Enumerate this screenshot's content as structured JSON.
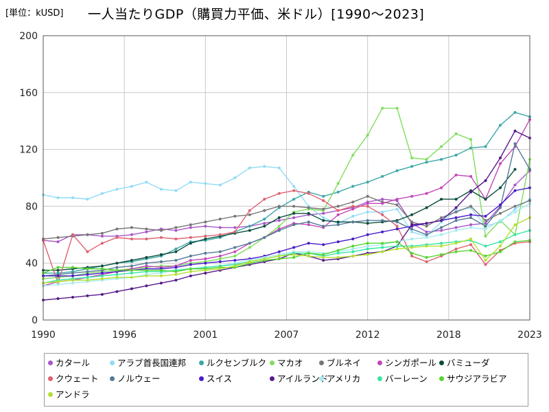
{
  "chart_data": {
    "type": "line",
    "unit_label": "[単位：kUSD]",
    "title": "一人当たりGDP（購買力平価、米ドル）[1990～2023]",
    "xlabel": "",
    "ylabel": "",
    "xlim": [
      1990,
      2023
    ],
    "ylim": [
      0,
      200
    ],
    "x_ticks": [
      "1990",
      "1996",
      "2001",
      "2007",
      "2012",
      "2018",
      "2023"
    ],
    "x_tick_values": [
      1990,
      1995.5,
      2001,
      2006.5,
      2012,
      2017.5,
      2023
    ],
    "y_ticks": [
      "0",
      "40",
      "80",
      "120",
      "160",
      "200"
    ],
    "y_tick_values": [
      0,
      40,
      80,
      120,
      160,
      200
    ],
    "grid": true,
    "legend_position": "bottom",
    "x": [
      1990,
      1991,
      1992,
      1993,
      1994,
      1995,
      1996,
      1997,
      1998,
      1999,
      2000,
      2001,
      2002,
      2003,
      2004,
      2005,
      2006,
      2007,
      2008,
      2009,
      2010,
      2011,
      2012,
      2013,
      2014,
      2015,
      2016,
      2017,
      2018,
      2019,
      2020,
      2021,
      2022,
      2023
    ],
    "series": [
      {
        "name": "カタール",
        "color": "#a855c8",
        "values": [
          56,
          55,
          60,
          60,
          59,
          59,
          60,
          62,
          64,
          63,
          65,
          66,
          65,
          65,
          66,
          68,
          70,
          72,
          74,
          75,
          77,
          79,
          83,
          85,
          84,
          68,
          62,
          63,
          65,
          67,
          68,
          80,
          95,
          105
        ]
      },
      {
        "name": "アラブ首長国連邦",
        "color": "#8fdcf5",
        "values": [
          88,
          86,
          86,
          85,
          89,
          92,
          94,
          97,
          92,
          91,
          97,
          96,
          95,
          100,
          107,
          108,
          107,
          94,
          80,
          72,
          68,
          73,
          76,
          76,
          78,
          62,
          59,
          69,
          77,
          79,
          66,
          69,
          78,
          85
        ]
      },
      {
        "name": "ルクセンブルク",
        "color": "#3aa6a8",
        "values": [
          33,
          33,
          34,
          36,
          38,
          40,
          41,
          43,
          45,
          50,
          55,
          56,
          58,
          62,
          66,
          71,
          79,
          85,
          90,
          87,
          90,
          94,
          97,
          101,
          105,
          108,
          111,
          113,
          116,
          121,
          122,
          137,
          146,
          143
        ]
      },
      {
        "name": "マカオ",
        "color": "#7ede5c",
        "values": [
          29,
          30,
          31,
          33,
          34,
          35,
          36,
          37,
          38,
          38,
          40,
          41,
          43,
          45,
          51,
          58,
          66,
          76,
          78,
          77,
          96,
          116,
          130,
          149,
          149,
          114,
          113,
          122,
          131,
          127,
          59,
          70,
          60,
          113
        ]
      },
      {
        "name": "ブルネイ",
        "color": "#767676",
        "values": [
          57,
          58,
          59,
          60,
          61,
          64,
          65,
          64,
          63,
          65,
          67,
          69,
          71,
          73,
          74,
          77,
          80,
          80,
          79,
          78,
          80,
          83,
          87,
          83,
          81,
          69,
          66,
          72,
          76,
          80,
          70,
          75,
          80,
          84
        ]
      },
      {
        "name": "シンガポール",
        "color": "#c247b8",
        "values": [
          24,
          27,
          28,
          30,
          32,
          34,
          36,
          38,
          37,
          38,
          42,
          43,
          45,
          48,
          54,
          58,
          64,
          68,
          67,
          65,
          74,
          78,
          82,
          82,
          85,
          87,
          89,
          93,
          102,
          101,
          85,
          110,
          122,
          141
        ]
      },
      {
        "name": "バミューダ",
        "color": "#0b4d3d",
        "values": [
          35,
          35,
          36,
          37,
          38,
          40,
          42,
          44,
          46,
          48,
          54,
          57,
          59,
          61,
          63,
          66,
          72,
          75,
          75,
          70,
          69,
          69,
          68,
          69,
          70,
          74,
          79,
          85,
          85,
          91,
          85,
          93,
          106,
          null
        ]
      },
      {
        "name": "クウェート",
        "color": "#e06070",
        "values": [
          56,
          26,
          60,
          48,
          54,
          58,
          57,
          57,
          58,
          57,
          58,
          59,
          60,
          62,
          77,
          85,
          89,
          91,
          89,
          84,
          77,
          80,
          80,
          74,
          66,
          45,
          41,
          45,
          50,
          53,
          39,
          49,
          54,
          55
        ]
      },
      {
        "name": "ノルウェー",
        "color": "#547a96",
        "values": [
          31,
          32,
          33,
          34,
          35,
          37,
          38,
          40,
          41,
          42,
          45,
          47,
          48,
          51,
          54,
          58,
          63,
          67,
          69,
          66,
          67,
          69,
          70,
          70,
          69,
          64,
          60,
          65,
          70,
          72,
          66,
          79,
          124,
          106
        ]
      },
      {
        "name": "スイス",
        "color": "#4a1cc8",
        "values": [
          31,
          31,
          31,
          32,
          33,
          34,
          35,
          36,
          36,
          37,
          39,
          40,
          41,
          42,
          43,
          45,
          48,
          51,
          54,
          53,
          55,
          57,
          60,
          62,
          64,
          66,
          68,
          70,
          72,
          74,
          73,
          81,
          91,
          93
        ]
      },
      {
        "name": "アイルランド",
        "color": "#551a8b",
        "values": [
          14,
          15,
          16,
          17,
          18,
          20,
          22,
          24,
          26,
          28,
          31,
          33,
          35,
          37,
          39,
          41,
          43,
          47,
          45,
          42,
          43,
          45,
          47,
          48,
          52,
          67,
          68,
          70,
          79,
          90,
          98,
          114,
          133,
          128
        ]
      },
      {
        "name": "アメリカ",
        "color": "#a8eaf0",
        "values": [
          24,
          25,
          26,
          27,
          28,
          29,
          30,
          32,
          33,
          35,
          36,
          37,
          38,
          40,
          42,
          44,
          46,
          48,
          48,
          47,
          48,
          50,
          52,
          53,
          55,
          57,
          58,
          60,
          63,
          65,
          64,
          70,
          76,
          82
        ]
      },
      {
        "name": "バーレーン",
        "color": "#35e6a0",
        "values": [
          26,
          28,
          29,
          30,
          31,
          32,
          33,
          34,
          34,
          35,
          36,
          37,
          38,
          39,
          41,
          43,
          45,
          47,
          47,
          45,
          47,
          48,
          50,
          51,
          52,
          52,
          53,
          54,
          55,
          56,
          52,
          55,
          60,
          63
        ]
      },
      {
        "name": "サウジアラビア",
        "color": "#55d42e",
        "values": [
          33,
          37,
          37,
          36,
          36,
          35,
          35,
          35,
          35,
          34,
          36,
          36,
          37,
          37,
          40,
          42,
          43,
          44,
          47,
          46,
          49,
          52,
          54,
          54,
          55,
          47,
          44,
          46,
          48,
          49,
          45,
          48,
          55,
          56
        ]
      },
      {
        "name": "アンドラ",
        "color": "#b4e032",
        "values": [
          26,
          27,
          28,
          28,
          29,
          30,
          30,
          31,
          31,
          32,
          34,
          35,
          36,
          38,
          41,
          43,
          45,
          46,
          45,
          44,
          44,
          45,
          46,
          48,
          50,
          51,
          52,
          52,
          54,
          57,
          42,
          52,
          67,
          72
        ]
      }
    ]
  }
}
